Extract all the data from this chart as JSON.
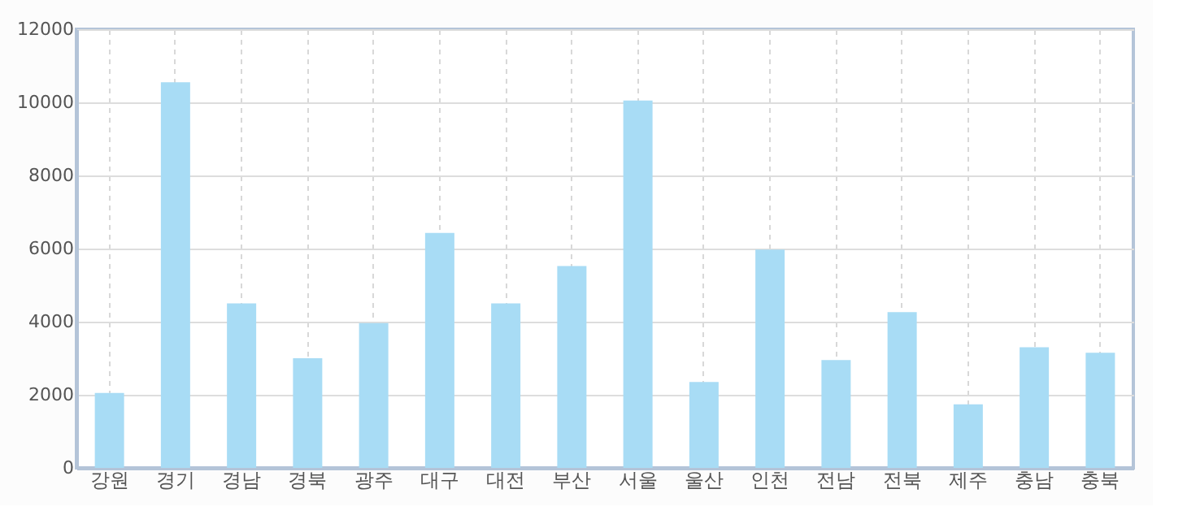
{
  "chart_data": {
    "type": "bar",
    "categories": [
      "강원",
      "경기",
      "경남",
      "경북",
      "광주",
      "대구",
      "대전",
      "부산",
      "서울",
      "울산",
      "인천",
      "전남",
      "전북",
      "제주",
      "충남",
      "충북"
    ],
    "series": [
      {
        "color": "#a8dcf5",
        "values": [
          2050,
          10550,
          4500,
          3000,
          3960,
          6430,
          4500,
          5520,
          10050,
          2350,
          5970,
          2950,
          4260,
          1740,
          3300,
          3150
        ]
      }
    ],
    "ylim": [
      0,
      12000
    ],
    "yticks": [
      0,
      2000,
      4000,
      6000,
      8000,
      10000,
      12000
    ],
    "grid": true
  }
}
